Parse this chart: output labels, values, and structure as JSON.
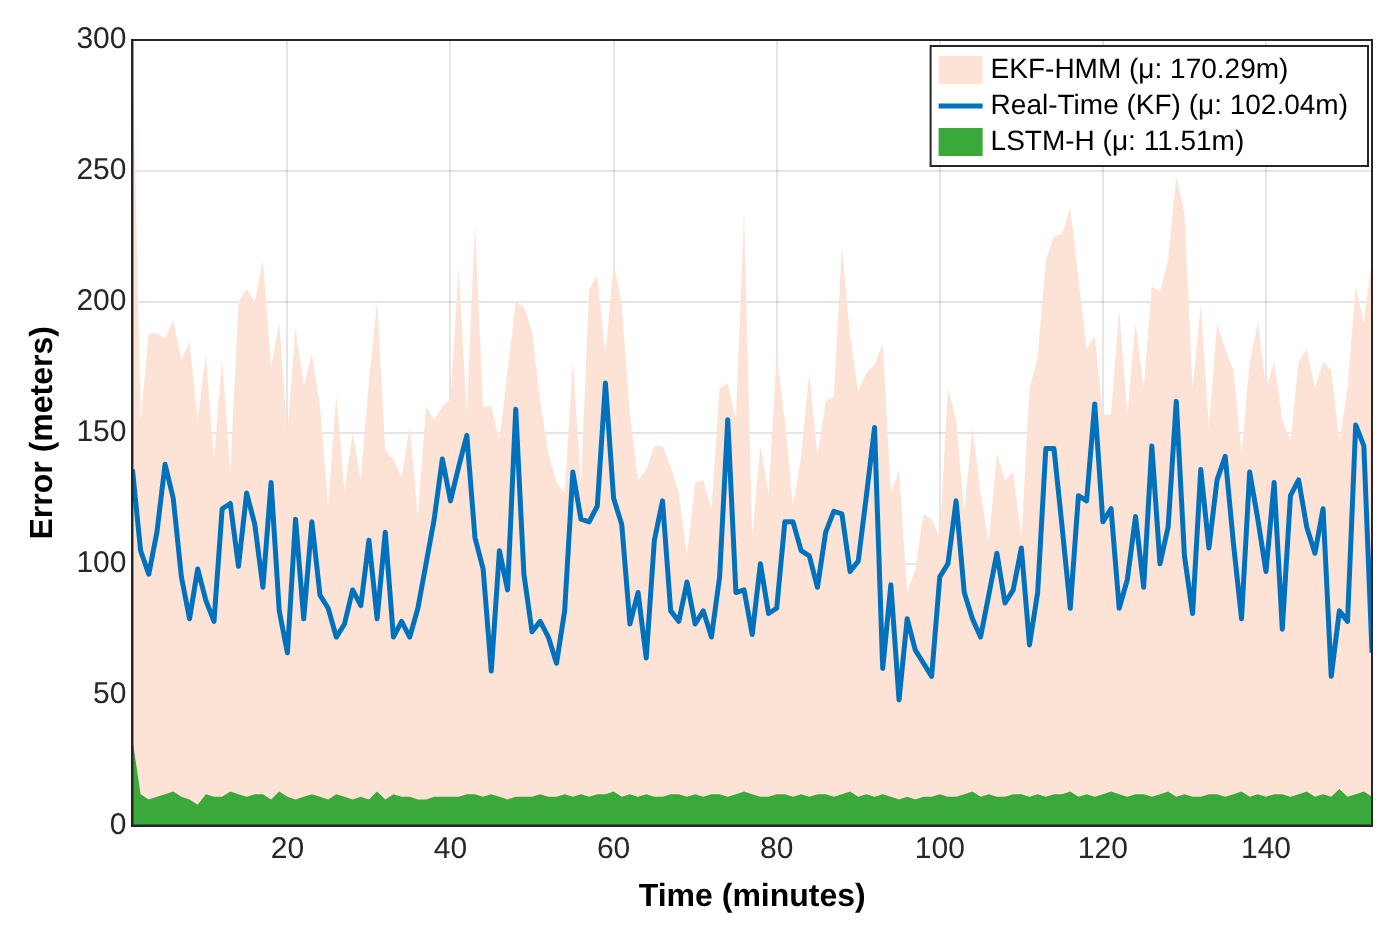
{
  "chart_data": {
    "type": "line",
    "xlabel": "Time (minutes)",
    "ylabel": "Error (meters)",
    "x": [
      1,
      2,
      3,
      4,
      5,
      6,
      7,
      8,
      9,
      10,
      11,
      12,
      13,
      14,
      15,
      16,
      17,
      18,
      19,
      20,
      21,
      22,
      23,
      24,
      25,
      26,
      27,
      28,
      29,
      30,
      31,
      32,
      33,
      34,
      35,
      36,
      37,
      38,
      39,
      40,
      41,
      42,
      43,
      44,
      45,
      46,
      47,
      48,
      49,
      50,
      51,
      52,
      53,
      54,
      55,
      56,
      57,
      58,
      59,
      60,
      61,
      62,
      63,
      64,
      65,
      66,
      67,
      68,
      69,
      70,
      71,
      72,
      73,
      74,
      75,
      76,
      77,
      78,
      79,
      80,
      81,
      82,
      83,
      84,
      85,
      86,
      87,
      88,
      89,
      90,
      91,
      92,
      93,
      94,
      95,
      96,
      97,
      98,
      99,
      100,
      101,
      102,
      103,
      104,
      105,
      106,
      107,
      108,
      109,
      110,
      111,
      112,
      113,
      114,
      115,
      116,
      117,
      118,
      119,
      120,
      121,
      122,
      123,
      124,
      125,
      126,
      127,
      128,
      129,
      130,
      131,
      132,
      133,
      134,
      135,
      136,
      137,
      138,
      139,
      140,
      141,
      142,
      143,
      144,
      145,
      146,
      147,
      148,
      149,
      150,
      151,
      152,
      153
    ],
    "series": [
      {
        "name": "EKF-HMM (μ: 170.29m)",
        "type": "area",
        "color": "#fde3d6",
        "values": [
          300,
          155,
          188,
          188,
          186,
          193,
          178,
          185,
          155,
          180,
          140,
          178,
          135,
          200,
          205,
          200,
          216,
          175,
          192,
          150,
          190,
          168,
          180,
          160,
          122,
          164,
          128,
          150,
          132,
          170,
          200,
          143,
          140,
          133,
          152,
          118,
          160,
          155,
          160,
          163,
          213,
          157,
          230,
          160,
          160,
          147,
          174,
          200,
          198,
          189,
          162,
          142,
          131,
          127,
          177,
          131,
          205,
          210,
          180,
          215,
          199,
          157,
          132,
          136,
          145,
          145,
          137,
          127,
          103,
          131,
          132,
          121,
          167,
          169,
          155,
          234,
          110,
          145,
          127,
          180,
          155,
          122,
          141,
          173,
          141,
          162,
          164,
          221,
          187,
          166,
          173,
          176,
          184,
          127,
          136,
          89,
          98,
          119,
          117,
          110,
          167,
          155,
          120,
          152,
          127,
          108,
          142,
          132,
          135,
          110,
          167,
          179,
          216,
          225,
          226,
          236,
          209,
          182,
          187,
          157,
          157,
          197,
          157,
          192,
          167,
          206,
          204,
          216,
          248,
          234,
          167,
          199,
          152,
          192,
          182,
          174,
          142,
          177,
          192,
          167,
          177,
          155,
          147,
          177,
          182,
          167,
          177,
          174,
          147,
          167,
          206,
          192,
          216
        ]
      },
      {
        "name": "Real-Time (KF) (μ: 102.04m)",
        "type": "line",
        "color": "#0072bd",
        "values": [
          136,
          105,
          96,
          112,
          138,
          125,
          95,
          79,
          98,
          86,
          78,
          121,
          123,
          99,
          127,
          115,
          91,
          131,
          82,
          66,
          117,
          79,
          116,
          88,
          83,
          72,
          77,
          90,
          84,
          109,
          79,
          112,
          72,
          78,
          72,
          83,
          100,
          117,
          140,
          124,
          137,
          149,
          110,
          98,
          59,
          105,
          90,
          159,
          96,
          74,
          78,
          72,
          62,
          82,
          135,
          117,
          116,
          122,
          169,
          125,
          115,
          77,
          89,
          64,
          109,
          124,
          82,
          78,
          93,
          77,
          82,
          72,
          95,
          155,
          89,
          90,
          73,
          100,
          81,
          83,
          116,
          116,
          105,
          103,
          91,
          112,
          120,
          119,
          97,
          101,
          126,
          152,
          60,
          92,
          48,
          79,
          67,
          62,
          57,
          95,
          100,
          124,
          89,
          79,
          72,
          88,
          104,
          85,
          90,
          106,
          69,
          89,
          144,
          144,
          114,
          83,
          126,
          124,
          161,
          116,
          121,
          83,
          94,
          118,
          91,
          145,
          100,
          114,
          162,
          103,
          81,
          136,
          106,
          132,
          141,
          108,
          79,
          135,
          117,
          97,
          131,
          75,
          126,
          132,
          114,
          104,
          121,
          57,
          82,
          78,
          153,
          145,
          66
        ]
      },
      {
        "name": "LSTM-H (μ: 11.51m)",
        "type": "area",
        "color": "#3aa83a",
        "values": [
          33,
          12,
          10,
          11,
          12,
          13,
          11,
          10,
          8,
          12,
          11,
          11,
          13,
          12,
          11,
          12,
          12,
          10,
          13,
          11,
          10,
          11,
          12,
          11,
          10,
          12,
          11,
          10,
          11,
          10,
          13,
          10,
          12,
          11,
          11,
          10,
          10,
          11,
          11,
          11,
          11,
          12,
          12,
          11,
          12,
          11,
          10,
          11,
          11,
          11,
          12,
          11,
          11,
          12,
          11,
          12,
          11,
          12,
          12,
          13,
          11,
          12,
          11,
          12,
          11,
          11,
          12,
          12,
          11,
          12,
          11,
          12,
          12,
          11,
          12,
          13,
          12,
          11,
          11,
          12,
          12,
          11,
          12,
          11,
          12,
          12,
          11,
          12,
          13,
          11,
          12,
          11,
          12,
          11,
          10,
          11,
          10,
          11,
          11,
          12,
          11,
          11,
          12,
          13,
          11,
          12,
          11,
          11,
          12,
          12,
          11,
          12,
          11,
          12,
          12,
          13,
          11,
          12,
          11,
          12,
          13,
          12,
          11,
          12,
          12,
          11,
          12,
          13,
          11,
          12,
          11,
          11,
          12,
          12,
          11,
          12,
          13,
          11,
          12,
          11,
          12,
          12,
          11,
          12,
          13,
          11,
          12,
          11,
          14,
          11,
          12,
          13,
          11
        ]
      }
    ],
    "xlim": [
      1,
      153
    ],
    "xticks": [
      20,
      40,
      60,
      80,
      100,
      120,
      140
    ],
    "ylim": [
      0,
      300
    ],
    "yticks": [
      0,
      50,
      100,
      150,
      200,
      250,
      300
    ],
    "grid": true,
    "legend": "top right",
    "marker": "none",
    "line_style": "solid"
  }
}
